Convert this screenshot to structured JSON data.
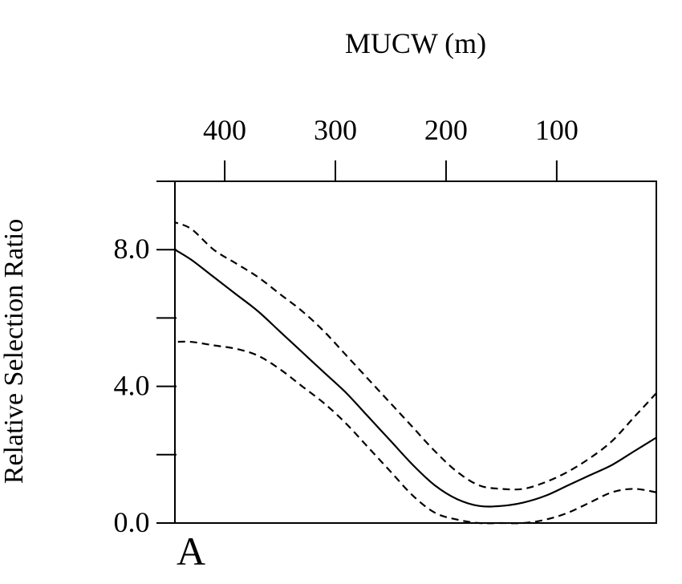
{
  "chart_data": {
    "type": "line",
    "title": "",
    "panel_label": "A",
    "xlabel": "MUCW (m)",
    "ylabel": "Relative Selection Ratio",
    "orientation": "rotated 180 degrees",
    "xlim": [
      10,
      445
    ],
    "ylim": [
      0.0,
      10.0
    ],
    "x_ticks": [
      100,
      200,
      300,
      400
    ],
    "x_tick_labels": [
      "100",
      "200",
      "300",
      "400"
    ],
    "y_ticks": [
      0,
      2,
      4,
      6,
      8,
      10
    ],
    "y_tick_labels": [
      "0.0",
      "",
      "4.0",
      "",
      "8.0",
      ""
    ],
    "grid": false,
    "legend": "none",
    "series": [
      {
        "style": "solid",
        "x": [
          10,
          30,
          50,
          70,
          90,
          110,
          130,
          150,
          170,
          190,
          210,
          230,
          250,
          270,
          290,
          310,
          330,
          350,
          370,
          390,
          410,
          430,
          445
        ],
        "y": [
          2.5,
          2.1,
          1.7,
          1.4,
          1.1,
          0.8,
          0.6,
          0.5,
          0.5,
          0.7,
          1.1,
          1.7,
          2.4,
          3.1,
          3.8,
          4.4,
          5.0,
          5.6,
          6.2,
          6.7,
          7.2,
          7.7,
          8.0
        ]
      },
      {
        "style": "dashed",
        "x": [
          10,
          30,
          50,
          70,
          90,
          110,
          130,
          150,
          170,
          190,
          210,
          230,
          250,
          270,
          290,
          310,
          330,
          350,
          370,
          390,
          410,
          430,
          445
        ],
        "y": [
          3.8,
          3.1,
          2.4,
          1.9,
          1.5,
          1.2,
          1.0,
          1.0,
          1.1,
          1.5,
          2.1,
          2.8,
          3.5,
          4.2,
          4.9,
          5.6,
          6.2,
          6.7,
          7.2,
          7.6,
          8.0,
          8.6,
          8.8
        ]
      },
      {
        "style": "dashed",
        "x": [
          10,
          30,
          50,
          70,
          90,
          110,
          130,
          150,
          170,
          190,
          210,
          230,
          250,
          270,
          290,
          310,
          330,
          350,
          370,
          390,
          410,
          430,
          445
        ],
        "y": [
          0.9,
          1.0,
          0.9,
          0.6,
          0.3,
          0.1,
          0.0,
          0.0,
          0.0,
          0.1,
          0.3,
          0.8,
          1.5,
          2.2,
          2.9,
          3.5,
          4.0,
          4.5,
          4.9,
          5.1,
          5.2,
          5.3,
          5.3
        ]
      }
    ]
  }
}
